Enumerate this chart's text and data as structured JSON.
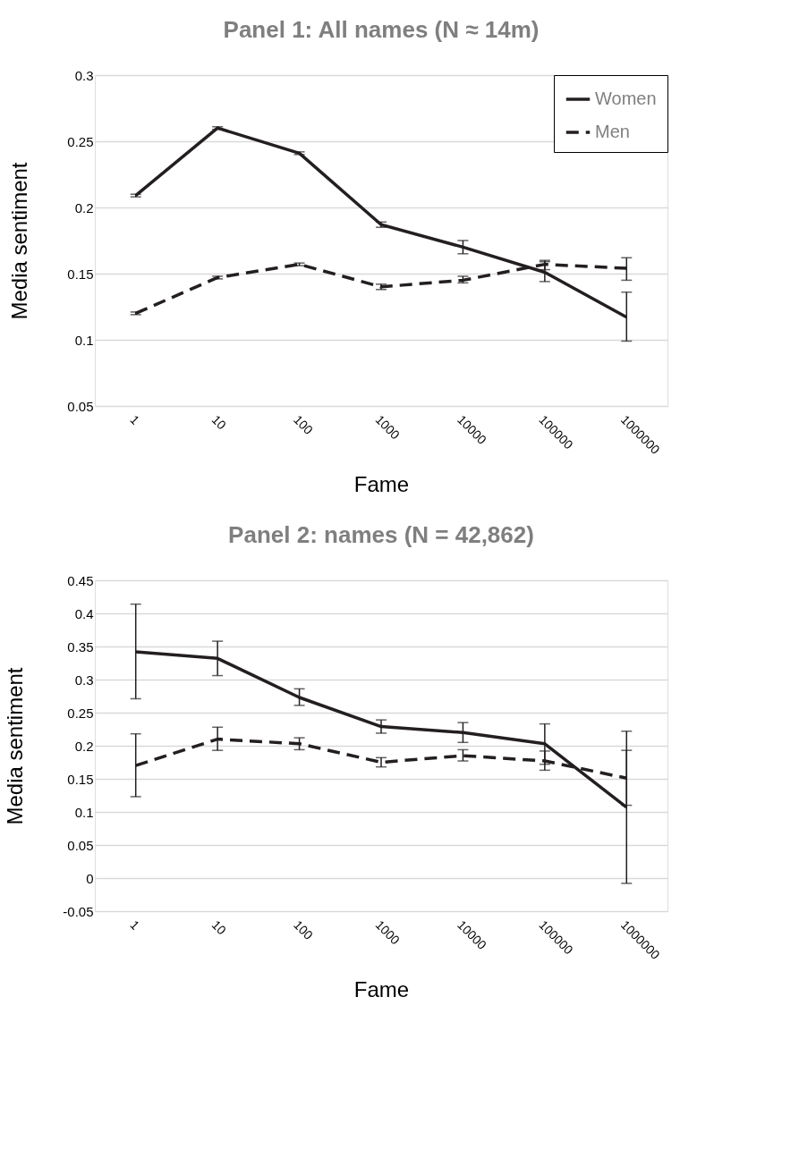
{
  "chart_data": [
    {
      "type": "line",
      "title": "Panel 1: All names (N ≈ 14m)",
      "xlabel": "Fame",
      "ylabel": "Media sentiment",
      "categories": [
        "1",
        "10",
        "100",
        "1000",
        "10000",
        "100000",
        "1000000"
      ],
      "ylim": [
        0.05,
        0.3
      ],
      "yticks": [
        0.05,
        0.1,
        0.15,
        0.2,
        0.25,
        0.3
      ],
      "grid": "y",
      "legend": "top right",
      "series": [
        {
          "name": "Women",
          "color": "#231f20",
          "line_style": "solid",
          "values": [
            0.209,
            0.26,
            0.241,
            0.187,
            0.17,
            0.151,
            0.117
          ],
          "errors": [
            [
              0.208,
              0.21
            ],
            [
              0.259,
              0.261
            ],
            [
              0.24,
              0.242
            ],
            [
              0.185,
              0.189
            ],
            [
              0.165,
              0.175
            ],
            [
              0.144,
              0.159
            ],
            [
              0.099,
              0.136
            ]
          ]
        },
        {
          "name": "Men",
          "color": "#231f20",
          "line_style": "dashed",
          "values": [
            0.12,
            0.147,
            0.157,
            0.14,
            0.145,
            0.157,
            0.154
          ],
          "errors": [
            [
              0.119,
              0.121
            ],
            [
              0.146,
              0.148
            ],
            [
              0.156,
              0.158
            ],
            [
              0.138,
              0.142
            ],
            [
              0.143,
              0.148
            ],
            [
              0.153,
              0.16
            ],
            [
              0.145,
              0.162
            ]
          ]
        }
      ]
    },
    {
      "type": "line",
      "title": "Panel 2: names (N = 42,862)",
      "xlabel": "Fame",
      "ylabel": "Media sentiment",
      "categories": [
        "1",
        "10",
        "100",
        "1000",
        "10000",
        "100000",
        "1000000"
      ],
      "ylim": [
        -0.05,
        0.45
      ],
      "yticks": [
        -0.05,
        0,
        0.05,
        0.1,
        0.15,
        0.2,
        0.25,
        0.3,
        0.35,
        0.4,
        0.45
      ],
      "grid": "y",
      "legend": "top right",
      "series": [
        {
          "name": "Women",
          "color": "#231f20",
          "line_style": "solid",
          "values": [
            0.342,
            0.332,
            0.273,
            0.229,
            0.22,
            0.203,
            0.107
          ],
          "errors": [
            [
              0.271,
              0.414
            ],
            [
              0.306,
              0.358
            ],
            [
              0.261,
              0.286
            ],
            [
              0.219,
              0.239
            ],
            [
              0.205,
              0.235
            ],
            [
              0.172,
              0.233
            ],
            [
              -0.008,
              0.222
            ]
          ]
        },
        {
          "name": "Men",
          "color": "#231f20",
          "line_style": "dashed",
          "values": [
            0.17,
            0.21,
            0.203,
            0.175,
            0.185,
            0.177,
            0.151
          ],
          "errors": [
            [
              0.123,
              0.218
            ],
            [
              0.193,
              0.228
            ],
            [
              0.194,
              0.212
            ],
            [
              0.168,
              0.182
            ],
            [
              0.177,
              0.194
            ],
            [
              0.163,
              0.192
            ],
            [
              0.11,
              0.193
            ]
          ]
        }
      ]
    }
  ]
}
